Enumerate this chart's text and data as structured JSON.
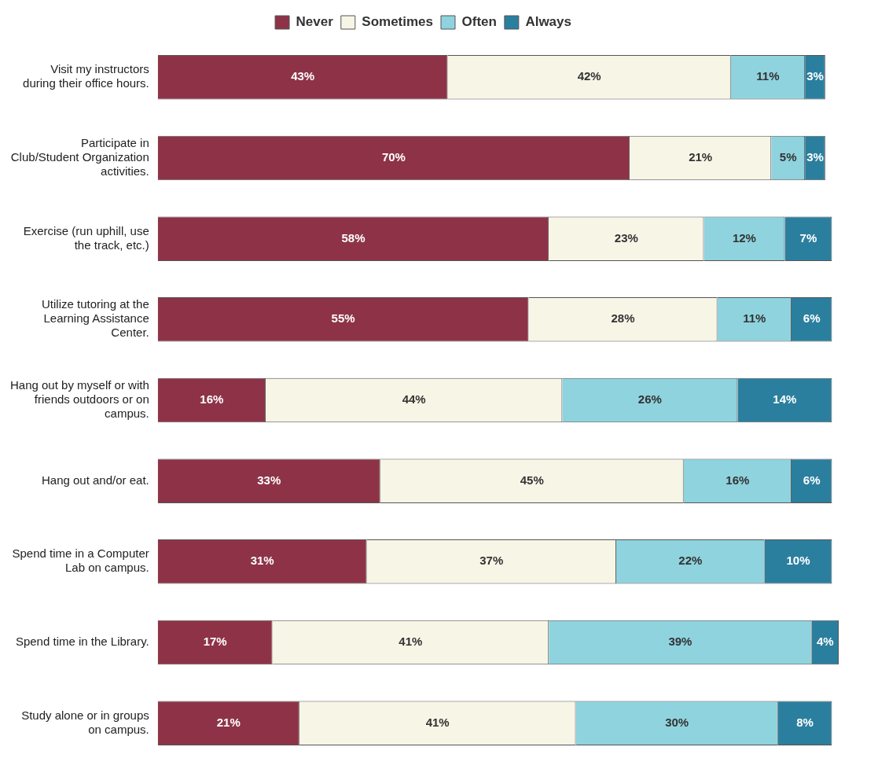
{
  "chart_data": {
    "type": "bar",
    "orientation": "horizontal",
    "stacked": true,
    "categories": [
      "Visit my instructors during their office hours.",
      "Participate in Club/Student Organization activities.",
      "Exercise (run uphill, use the track, etc.)",
      "Utilize tutoring at the Learning Assistance Center.",
      "Hang out by myself or with friends outdoors or on campus.",
      "Hang out and/or eat.",
      "Spend time in a Computer Lab on campus.",
      "Spend time in the Library.",
      "Study alone or in groups on campus."
    ],
    "series": [
      {
        "name": "Never",
        "color": "#8e3347",
        "values": [
          43,
          70,
          58,
          55,
          16,
          33,
          31,
          17,
          21
        ],
        "value_labels": [
          "43%",
          "70%",
          "58%",
          "55%",
          "16%",
          "33%",
          "31%",
          "17%",
          "21%"
        ]
      },
      {
        "name": "Sometimes",
        "color": "#f7f5e6",
        "values": [
          42,
          21,
          23,
          28,
          44,
          45,
          37,
          41,
          41
        ],
        "value_labels": [
          "42%",
          "21%",
          "23%",
          "28%",
          "44%",
          "45%",
          "37%",
          "41%",
          "41%"
        ]
      },
      {
        "name": "Often",
        "color": "#8fd3de",
        "values": [
          11,
          5,
          12,
          11,
          26,
          16,
          22,
          39,
          30
        ],
        "value_labels": [
          "11%",
          "5%",
          "12%",
          "11%",
          "26%",
          "16%",
          "22%",
          "39%",
          "30%"
        ]
      },
      {
        "name": "Always",
        "color": "#2b7f9e",
        "values": [
          3,
          3,
          7,
          6,
          14,
          6,
          10,
          4,
          8
        ],
        "value_labels": [
          "3%",
          "3%",
          "7%",
          "6%",
          "14%",
          "6%",
          "10%",
          "4%",
          "8%"
        ]
      }
    ],
    "xlim": [
      0,
      101
    ],
    "legend": "top",
    "tick_labels": "y",
    "grid": false
  }
}
